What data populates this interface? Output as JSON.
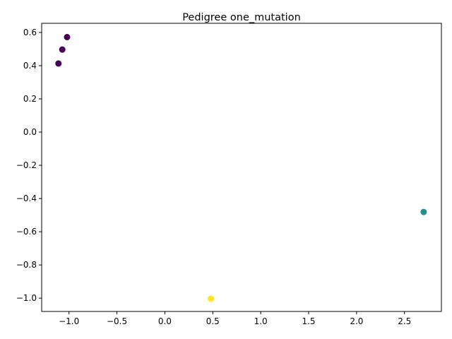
{
  "chart_data": {
    "type": "scatter",
    "title": "Pedigree one_mutation",
    "xlabel": "",
    "ylabel": "",
    "xlim": [
      -1.285,
      2.885
    ],
    "ylim": [
      -1.08,
      0.655
    ],
    "grid": false,
    "x_ticks": [
      -1.0,
      -0.5,
      0.0,
      0.5,
      1.0,
      1.5,
      2.0,
      2.5
    ],
    "x_tick_labels": [
      "−1.0",
      "−0.5",
      "0.0",
      "0.5",
      "1.0",
      "1.5",
      "2.0",
      "2.5"
    ],
    "y_ticks": [
      -1.0,
      -0.8,
      -0.6,
      -0.4,
      -0.2,
      0.0,
      0.2,
      0.4,
      0.6
    ],
    "y_tick_labels": [
      "−1.0",
      "−0.8",
      "−0.6",
      "−0.4",
      "−0.2",
      "0.0",
      "0.2",
      "0.4",
      "0.6"
    ],
    "points": [
      {
        "x": -1.02,
        "y": 0.572,
        "color": "#440154"
      },
      {
        "x": -1.07,
        "y": 0.497,
        "color": "#440154"
      },
      {
        "x": -1.11,
        "y": 0.413,
        "color": "#440154"
      },
      {
        "x": 2.7,
        "y": -0.481,
        "color": "#21918c"
      },
      {
        "x": 0.48,
        "y": -1.003,
        "color": "#fde725"
      }
    ]
  }
}
